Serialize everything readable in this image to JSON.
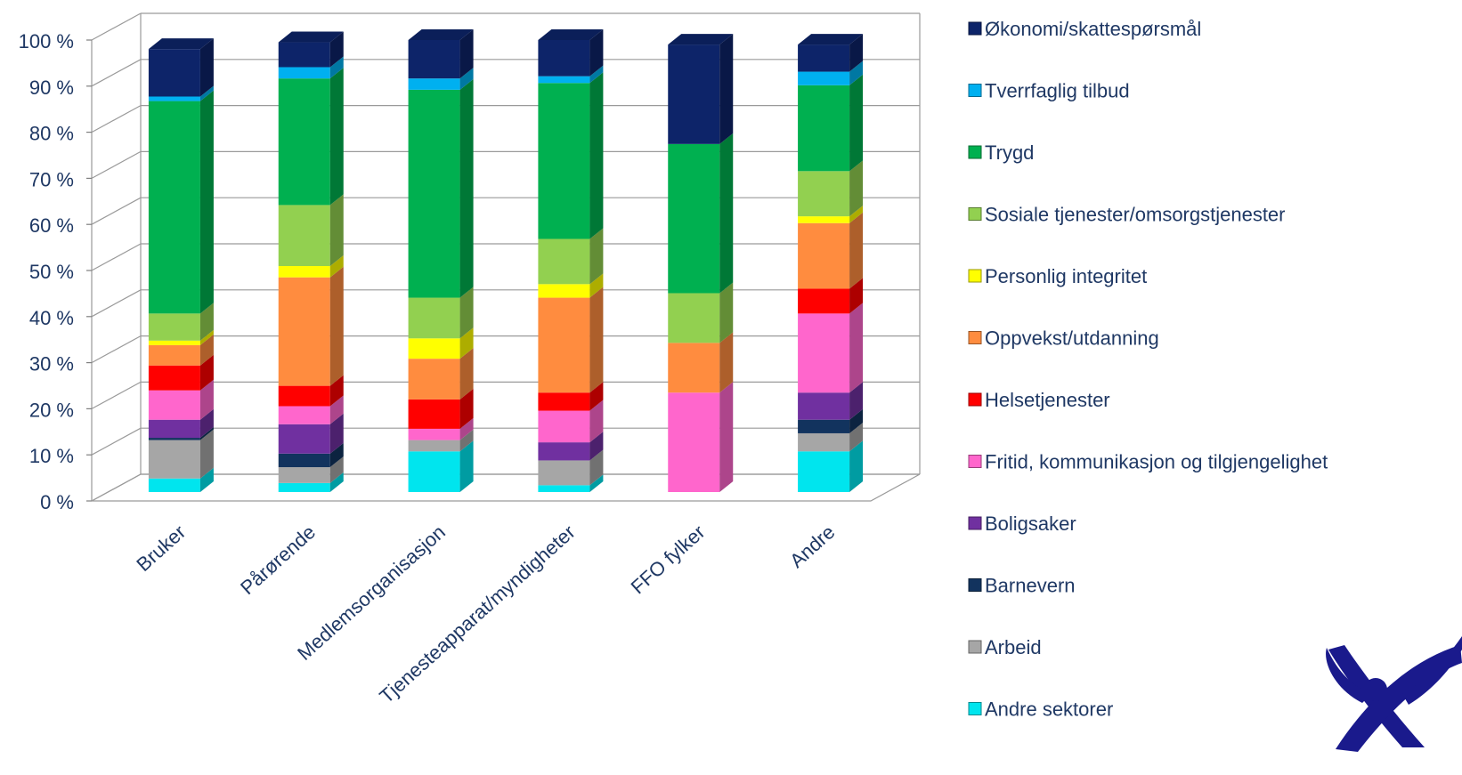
{
  "chart_data": {
    "type": "bar",
    "stacked": true,
    "percent_stacked": true,
    "three_d": true,
    "categories": [
      "Bruker",
      "Pårørende",
      "Medlemsorganisasjon",
      "Tjenesteapparat/myndigheter",
      "FFO fylker",
      "Andre"
    ],
    "y_ticks": [
      "0 %",
      "10 %",
      "20 %",
      "30 %",
      "40 %",
      "50 %",
      "60 %",
      "70 %",
      "80 %",
      "90 %",
      "100 %"
    ],
    "ylim": [
      0,
      100
    ],
    "grid": true,
    "legend_position": "right",
    "series": [
      {
        "name": "Andre sektorer",
        "color": "#00E5EE",
        "values": [
          3,
          2,
          9,
          1.5,
          0,
          9
        ]
      },
      {
        "name": "Arbeid",
        "color": "#A6A6A6",
        "values": [
          8.5,
          3.5,
          2.5,
          5.5,
          0,
          4
        ]
      },
      {
        "name": "Barnevern",
        "color": "#12335E",
        "values": [
          0.5,
          3,
          0,
          0,
          0,
          3
        ]
      },
      {
        "name": "Boligsaker",
        "color": "#7030A0",
        "values": [
          4,
          6.5,
          0,
          4,
          0,
          6
        ]
      },
      {
        "name": "Fritid, kommunikasjon og tilgjengelighet",
        "color": "#FF66CC",
        "values": [
          6.5,
          4,
          2.5,
          7,
          22,
          17.5
        ]
      },
      {
        "name": "Helsetjenester",
        "color": "#FF0000",
        "values": [
          5.5,
          4.5,
          6.5,
          4,
          0,
          5.5
        ]
      },
      {
        "name": "Oppvekst/utdanning",
        "color": "#FF8C3F",
        "values": [
          4.5,
          24,
          9,
          21,
          11,
          14.5
        ]
      },
      {
        "name": "Personlig integritet",
        "color": "#FFFF00",
        "values": [
          1,
          2.5,
          4.5,
          3,
          0,
          1.5
        ]
      },
      {
        "name": "Sosiale tjenester/omsorgstjenester",
        "color": "#92D050",
        "values": [
          6,
          13.5,
          9,
          10,
          11,
          10
        ]
      },
      {
        "name": "Trygd",
        "color": "#00B050",
        "values": [
          47,
          28,
          46,
          34.5,
          33,
          19
        ]
      },
      {
        "name": "Tverrfaglig tilbud",
        "color": "#00B0F0",
        "values": [
          1,
          2.5,
          2.5,
          1.5,
          0,
          3
        ]
      },
      {
        "name": "Økonomi/skattespørsmål",
        "color": "#0D2469",
        "values": [
          10.5,
          5.5,
          8.5,
          8,
          22,
          6
        ]
      }
    ]
  },
  "logo": {
    "name": "ffo-logo",
    "color": "#1A1A8C"
  }
}
